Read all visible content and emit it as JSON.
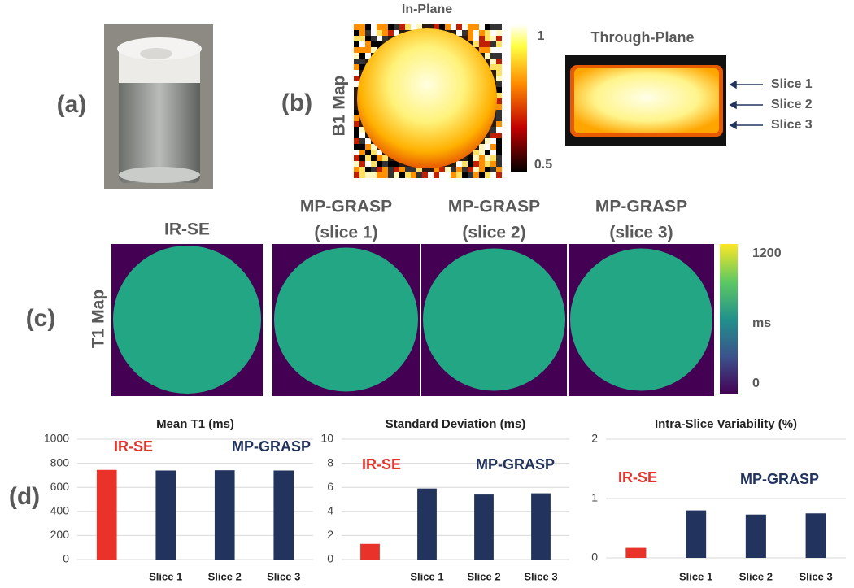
{
  "panel_labels": [
    "(a)",
    "(b)",
    "(c)",
    "(d)"
  ],
  "b1_map": {
    "ylabel": "B1 Map",
    "in_plane_title": "In-Plane",
    "through_plane_title": "Through-Plane",
    "colorbar_ticks": [
      "1",
      "0.5"
    ],
    "slice_labels": [
      "Slice 1",
      "Slice 2",
      "Slice 3"
    ]
  },
  "t1_map": {
    "ylabel": "T1 Map",
    "titles": [
      [
        "IR-SE"
      ],
      [
        "MP-GRASP",
        "(slice 1)"
      ],
      [
        "MP-GRASP",
        "(slice 2)"
      ],
      [
        "MP-GRASP",
        "(slice 3)"
      ]
    ],
    "colorbar_labels": [
      "1200",
      "ms",
      "0"
    ]
  },
  "chart_data": [
    {
      "type": "bar",
      "title": "Mean T1 (ms)",
      "categories": [
        null,
        "Slice 1",
        "Slice 2",
        "Slice 3"
      ],
      "values": [
        745,
        740,
        742,
        740
      ],
      "colors": [
        "#e8322a",
        "#22335e",
        "#22335e",
        "#22335e"
      ],
      "ylim": [
        0,
        1000
      ],
      "yticks": [
        0,
        200,
        400,
        600,
        800,
        1000
      ],
      "grid": true,
      "annotations": [
        {
          "text": "IR-SE",
          "color": "#e8322a"
        },
        {
          "text": "MP-GRASP",
          "color": "#22335e"
        }
      ]
    },
    {
      "type": "bar",
      "title": "Standard Deviation (ms)",
      "categories": [
        null,
        "Slice 1",
        "Slice 2",
        "Slice 3"
      ],
      "values": [
        1.3,
        5.9,
        5.4,
        5.5
      ],
      "colors": [
        "#e8322a",
        "#22335e",
        "#22335e",
        "#22335e"
      ],
      "ylim": [
        0,
        10
      ],
      "yticks": [
        0,
        2,
        4,
        6,
        8,
        10
      ],
      "grid": true,
      "annotations": [
        {
          "text": "IR-SE",
          "color": "#e8322a"
        },
        {
          "text": "MP-GRASP",
          "color": "#22335e"
        }
      ]
    },
    {
      "type": "bar",
      "title": "Intra-Slice Variability (%)",
      "categories": [
        null,
        "Slice 1",
        "Slice 2",
        "Slice 3"
      ],
      "values": [
        0.17,
        0.8,
        0.73,
        0.75
      ],
      "colors": [
        "#e8322a",
        "#22335e",
        "#22335e",
        "#22335e"
      ],
      "ylim": [
        0,
        2
      ],
      "yticks": [
        0,
        1,
        2
      ],
      "grid": true,
      "annotations": [
        {
          "text": "IR-SE",
          "color": "#e8322a"
        },
        {
          "text": "MP-GRASP",
          "color": "#22335e"
        }
      ]
    }
  ]
}
